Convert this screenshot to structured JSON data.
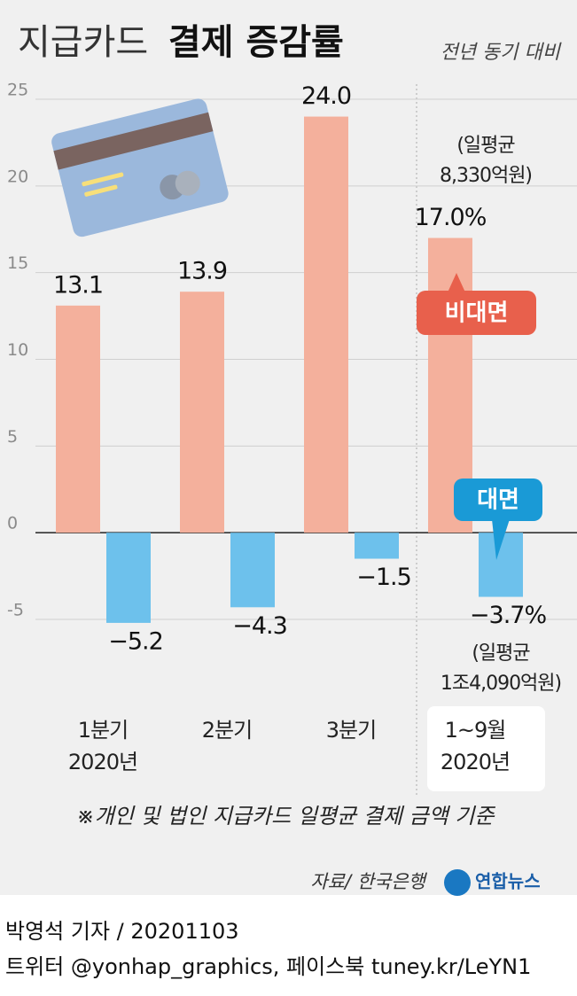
{
  "chart_data": {
    "type": "bar",
    "title": {
      "regular": "지급카드",
      "bold": "결제 증감률"
    },
    "subtitle": "전년 동기 대비",
    "categories": [
      [
        "1분기",
        "2020년"
      ],
      [
        "2분기"
      ],
      [
        "3분기"
      ],
      [
        "1~9월",
        "2020년"
      ]
    ],
    "series": [
      {
        "name": "비대면",
        "color": "#f4b09c",
        "label_color": "#e8604c",
        "values": [
          13.1,
          13.9,
          24.0,
          17.0
        ],
        "value_labels": [
          "13.1",
          "13.9",
          "24.0",
          "17.0%"
        ]
      },
      {
        "name": "대면",
        "color": "#6dc1ec",
        "label_color": "#1a9ad6",
        "values": [
          -5.2,
          -4.3,
          -1.5,
          -3.7
        ],
        "value_labels": [
          "−5.2",
          "−4.3",
          "−1.5",
          "−3.7%"
        ]
      }
    ],
    "annotations": [
      [
        "(일평균",
        "8,330억원)"
      ],
      [
        "(일평균",
        "1조4,090억원)"
      ]
    ],
    "ylim": [
      -5,
      25
    ],
    "yticks": [
      -5,
      0,
      5,
      10,
      15,
      20,
      25
    ],
    "grid": true,
    "footnote": "※개인 및 법인 지급카드 일평균 결제 금액 기준",
    "source": "자료/ 한국은행",
    "logo": "연합뉴스",
    "credits": [
      "박영석 기자 /  20201103",
      "트위터 @yonhap_graphics, 페이스북 tuney.kr/LeYN1"
    ]
  }
}
